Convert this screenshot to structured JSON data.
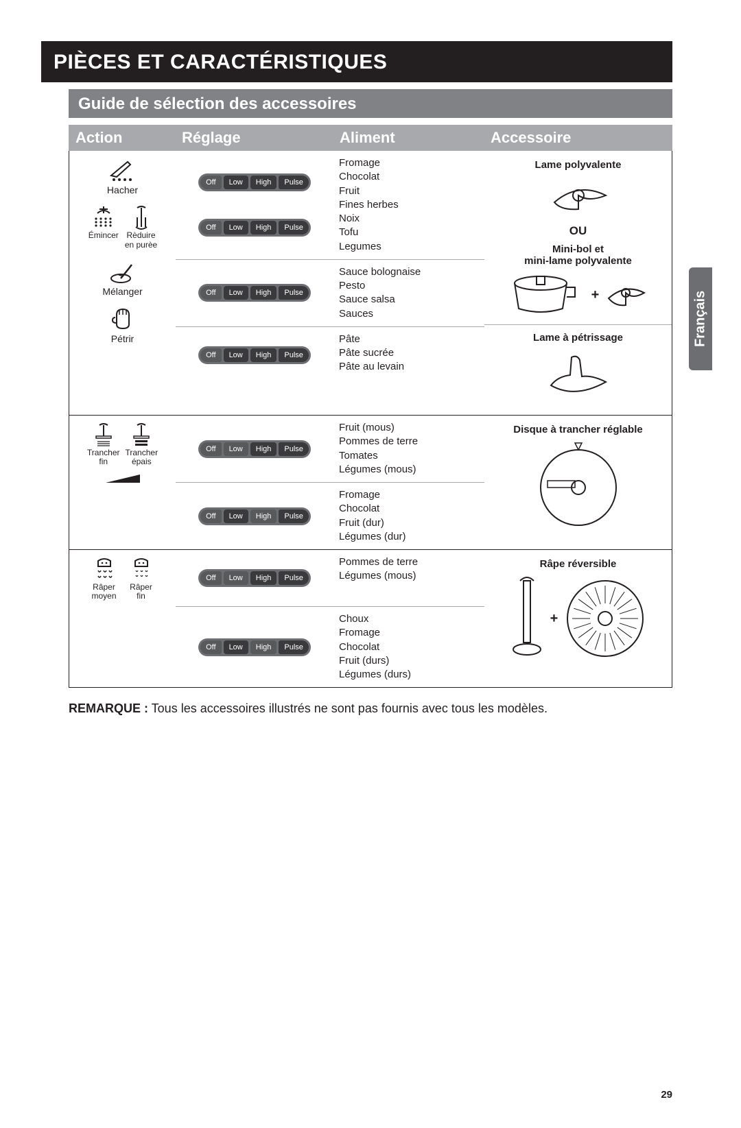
{
  "page": {
    "main_title": "PIÈCES ET CARACTÉRISTIQUES",
    "sub_title": "Guide de sélection des accessoires",
    "side_tab": "Français",
    "page_number": "29",
    "note_label": "REMARQUE :",
    "note_text": " Tous les accessoires illustrés ne sont pas fournis avec tous les modèles."
  },
  "headers": {
    "action": "Action",
    "reglage": "Réglage",
    "aliment": "Aliment",
    "accessoire": "Accessoire"
  },
  "control_labels": {
    "off": "Off",
    "low": "Low",
    "high": "High",
    "pulse": "Pulse"
  },
  "sections": [
    {
      "actions": [
        {
          "label": "Hacher",
          "icon": "knife"
        },
        {
          "dual": [
            {
              "label": "Émincer",
              "icon": "mince"
            },
            {
              "label": "Rèduire\nen purèe",
              "icon": "puree"
            }
          ]
        },
        {
          "label": "Mélanger",
          "icon": "whisk"
        },
        {
          "label": "Pétrir",
          "icon": "glove"
        }
      ],
      "rows": [
        {
          "highlights": [
            "low",
            "high",
            "pulse"
          ],
          "foods": [
            "Fromage",
            "Chocolat",
            "Fruit",
            "Fines herbes",
            "Noix",
            "Tofu",
            "Legumes"
          ],
          "rowspan_two": true
        },
        {
          "highlights": [
            "low",
            "high",
            "pulse"
          ],
          "skip": true
        },
        {
          "highlights": [
            "low",
            "high",
            "pulse"
          ],
          "foods": [
            "Sauce bolognaise",
            "Pesto",
            "Sauce salsa",
            "Sauces"
          ]
        },
        {
          "highlights": [
            "low",
            "high",
            "pulse"
          ],
          "foods": [
            "Pâte",
            "Pâte sucrée",
            "Pâte au levain"
          ],
          "acc_break": true
        }
      ],
      "accessory": {
        "title1": "Lame polyvalente",
        "or": "OU",
        "title2": "Mini-bol et\nmini-lame polyvalente",
        "title3": "Lame à pétrissage"
      }
    },
    {
      "actions": [
        {
          "dual": [
            {
              "label": "Trancher\nfin",
              "icon": "slice-fine"
            },
            {
              "label": "Trancher\népais",
              "icon": "slice-thick"
            }
          ],
          "wedge": true
        }
      ],
      "rows": [
        {
          "highlights": [
            "high",
            "pulse"
          ],
          "foods": [
            "Fruit (mous)",
            "Pommes de terre",
            "Tomates",
            "Légumes (mous)"
          ]
        },
        {
          "highlights": [
            "low",
            "pulse"
          ],
          "foods": [
            "Fromage",
            "Chocolat",
            "Fruit (dur)",
            "Légumes (dur)"
          ]
        }
      ],
      "accessory": {
        "title1": "Disque à trancher réglable"
      }
    },
    {
      "actions": [
        {
          "dual": [
            {
              "label": "Râper\nmoyen",
              "icon": "shred-med"
            },
            {
              "label": "Râper\nfin",
              "icon": "shred-fine"
            }
          ]
        }
      ],
      "rows": [
        {
          "highlights": [
            "high",
            "pulse"
          ],
          "foods": [
            "Pommes de terre",
            "Légumes (mous)"
          ]
        },
        {
          "highlights": [
            "low",
            "pulse"
          ],
          "foods": [
            "Choux",
            "Fromage",
            "Chocolat",
            "Fruit (durs)",
            "Légumes (durs)"
          ]
        }
      ],
      "accessory": {
        "title1": "Râpe réversible"
      }
    }
  ]
}
